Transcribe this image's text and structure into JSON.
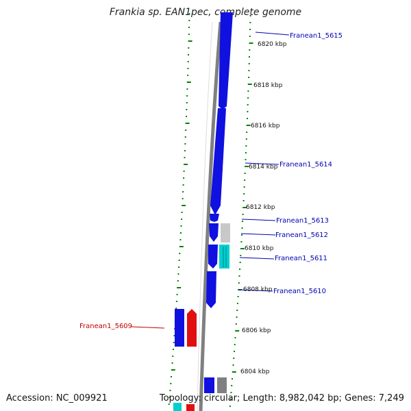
{
  "title": "Frankia sp. EAN1pec, complete genome",
  "accession": "Accession: NC_009921",
  "summary": "Topology: circular; Length: 8,982,042 bp; Genes: 7,249",
  "colors": {
    "forward": "#1010e0",
    "other": "#c8c8c8",
    "cyan": "#00d0d0",
    "red": "#e01010",
    "backbone": "#808080",
    "ticks": "#008000",
    "label_blue": "#0000b0",
    "label_red": "#c00000"
  },
  "ticks": [
    {
      "label": "6820 kbp"
    },
    {
      "label": "6818 kbp"
    },
    {
      "label": "6816 kbp"
    },
    {
      "label": "6814 kbp"
    },
    {
      "label": "6812 kbp"
    },
    {
      "label": "6810 kbp"
    },
    {
      "label": "6808 kbp"
    },
    {
      "label": "6806 kbp"
    },
    {
      "label": "6804 kbp"
    }
  ],
  "genes": [
    {
      "id": "Franean1_5615",
      "color": "forward"
    },
    {
      "id": "Franean1_5614",
      "color": "forward"
    },
    {
      "id": "Franean1_5613",
      "color": "forward"
    },
    {
      "id": "Franean1_5612",
      "color": "other"
    },
    {
      "id": "Franean1_5611",
      "color": "cyan"
    },
    {
      "id": "Franean1_5610",
      "color": "forward"
    },
    {
      "id": "Franean1_5609",
      "color": "red"
    }
  ]
}
